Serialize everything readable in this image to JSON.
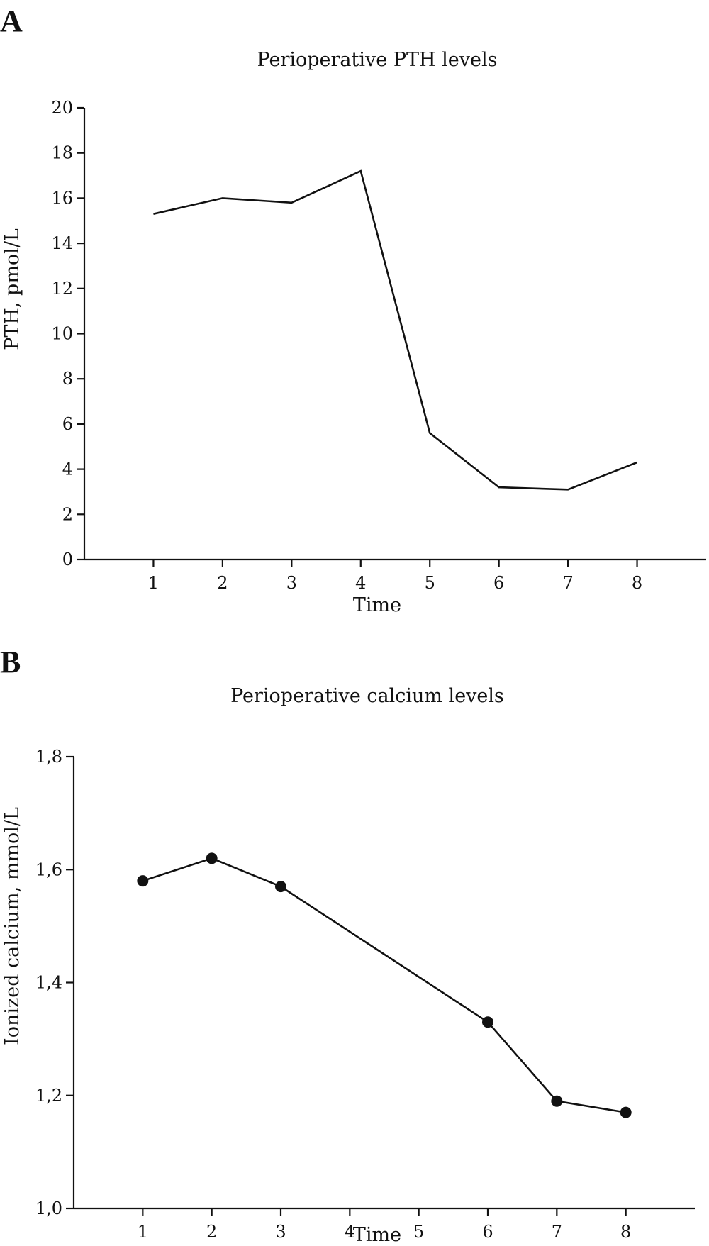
{
  "chart_data": [
    {
      "panel": "A",
      "type": "line",
      "title": "Perioperative PTH levels",
      "xlabel": "Time",
      "ylabel": "PTH, pmol/L",
      "x_ticks": [
        "1",
        "2",
        "3",
        "4",
        "5",
        "6",
        "7",
        "8"
      ],
      "y_ticks": [
        "0",
        "2",
        "4",
        "6",
        "8",
        "10",
        "12",
        "14",
        "16",
        "18",
        "20"
      ],
      "ylim": [
        0,
        20
      ],
      "xlim": [
        0,
        9
      ],
      "grid": false,
      "markers": false,
      "series": [
        {
          "x": [
            1,
            2,
            3,
            4,
            5,
            6,
            7,
            8
          ],
          "y": [
            15.3,
            16.0,
            15.8,
            17.2,
            5.6,
            3.2,
            3.1,
            4.3
          ]
        }
      ]
    },
    {
      "panel": "B",
      "type": "line",
      "title": "Perioperative calcium levels",
      "xlabel": "Time",
      "ylabel": "Ionized calcium, mmol/L",
      "x_ticks": [
        "1",
        "2",
        "3",
        "4",
        "5",
        "6",
        "7",
        "8"
      ],
      "y_ticks": [
        "1,0",
        "1,2",
        "1,4",
        "1,6",
        "1,8"
      ],
      "ylim": [
        1.0,
        1.8
      ],
      "xlim": [
        0,
        9
      ],
      "grid": false,
      "markers": true,
      "series": [
        {
          "x": [
            1,
            2,
            3,
            6,
            7,
            8
          ],
          "y": [
            1.58,
            1.62,
            1.57,
            1.33,
            1.19,
            1.17
          ]
        }
      ]
    }
  ]
}
